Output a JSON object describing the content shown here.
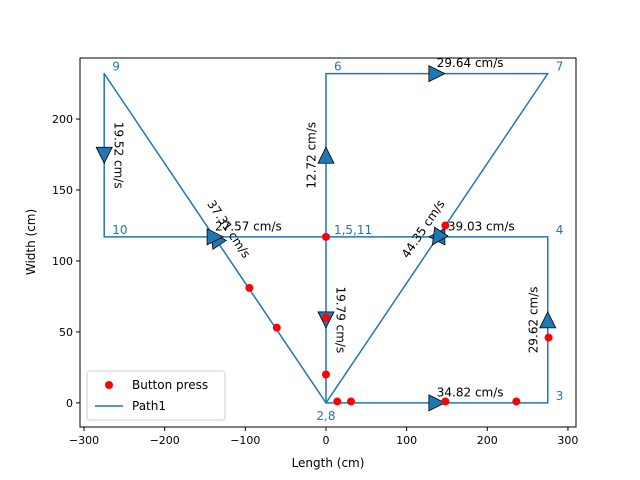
{
  "chart_data": {
    "type": "line",
    "title": "",
    "xlabel": "Length (cm)",
    "ylabel": "Width (cm)",
    "xlim": [
      -305,
      310
    ],
    "ylim": [
      -17,
      243
    ],
    "xticks": [
      -300,
      -200,
      -100,
      0,
      100,
      200,
      300
    ],
    "yticks": [
      0,
      50,
      100,
      150,
      200
    ],
    "grid": false,
    "legend_position": "lower-left",
    "colors": {
      "path": "#1f77b4",
      "press": "#ff0000",
      "label": "#1f77b4",
      "speed": "#000000"
    },
    "series": [
      {
        "name": "Path1",
        "type": "line",
        "points": [
          [
            0,
            117
          ],
          [
            0,
            0
          ],
          [
            275,
            0
          ],
          [
            275,
            117
          ],
          [
            0,
            117
          ],
          [
            0,
            232
          ],
          [
            275,
            232
          ],
          [
            0,
            0
          ],
          [
            -275,
            232
          ],
          [
            -275,
            117
          ],
          [
            0,
            117
          ]
        ]
      },
      {
        "name": "Button press",
        "type": "scatter",
        "points": [
          [
            0,
            117
          ],
          [
            0,
            60
          ],
          [
            0,
            20
          ],
          [
            14,
            1
          ],
          [
            31,
            1
          ],
          [
            148,
            1
          ],
          [
            236,
            1
          ],
          [
            276,
            46
          ],
          [
            148,
            125
          ],
          [
            -95,
            81
          ],
          [
            -61,
            53
          ]
        ]
      }
    ],
    "point_labels": [
      {
        "text": "1,5,11",
        "x": 0,
        "y": 117,
        "anchor": "right"
      },
      {
        "text": "2,8",
        "x": 0,
        "y": 0,
        "anchor": "below"
      },
      {
        "text": "3",
        "x": 275,
        "y": 0,
        "anchor": "right"
      },
      {
        "text": "4",
        "x": 275,
        "y": 117,
        "anchor": "right"
      },
      {
        "text": "6",
        "x": 0,
        "y": 232,
        "anchor": "right"
      },
      {
        "text": "7",
        "x": 275,
        "y": 232,
        "anchor": "right"
      },
      {
        "text": "9",
        "x": -275,
        "y": 232,
        "anchor": "right"
      },
      {
        "text": "10",
        "x": -275,
        "y": 117,
        "anchor": "right"
      }
    ],
    "arrows": [
      {
        "from": [
          0,
          117
        ],
        "to": [
          0,
          0
        ]
      },
      {
        "from": [
          0,
          0
        ],
        "to": [
          275,
          0
        ]
      },
      {
        "from": [
          275,
          0
        ],
        "to": [
          275,
          117
        ]
      },
      {
        "from": [
          275,
          117
        ],
        "to": [
          0,
          117
        ]
      },
      {
        "from": [
          0,
          117
        ],
        "to": [
          0,
          232
        ]
      },
      {
        "from": [
          0,
          232
        ],
        "to": [
          275,
          232
        ]
      },
      {
        "from": [
          275,
          232
        ],
        "to": [
          0,
          0
        ]
      },
      {
        "from": [
          0,
          0
        ],
        "to": [
          -275,
          232
        ]
      },
      {
        "from": [
          -275,
          232
        ],
        "to": [
          -275,
          117
        ]
      },
      {
        "from": [
          -275,
          117
        ],
        "to": [
          0,
          117
        ]
      }
    ],
    "speed_labels": [
      {
        "text": "19.79 cm/s",
        "segment": 0
      },
      {
        "text": "34.82 cm/s",
        "segment": 1
      },
      {
        "text": "29.62 cm/s",
        "segment": 2
      },
      {
        "text": "39.03 cm/s",
        "segment": 3
      },
      {
        "text": "12.72 cm/s",
        "segment": 4
      },
      {
        "text": "29.64 cm/s",
        "segment": 5
      },
      {
        "text": "44.35 cm/s",
        "segment": 6
      },
      {
        "text": "37.31 cm/s",
        "segment": 7
      },
      {
        "text": "19.52 cm/s",
        "segment": 8
      },
      {
        "text": "27.57 cm/s",
        "segment": 9
      }
    ],
    "legend": [
      {
        "label": "Button press",
        "kind": "marker"
      },
      {
        "label": "Path1",
        "kind": "line"
      }
    ]
  }
}
